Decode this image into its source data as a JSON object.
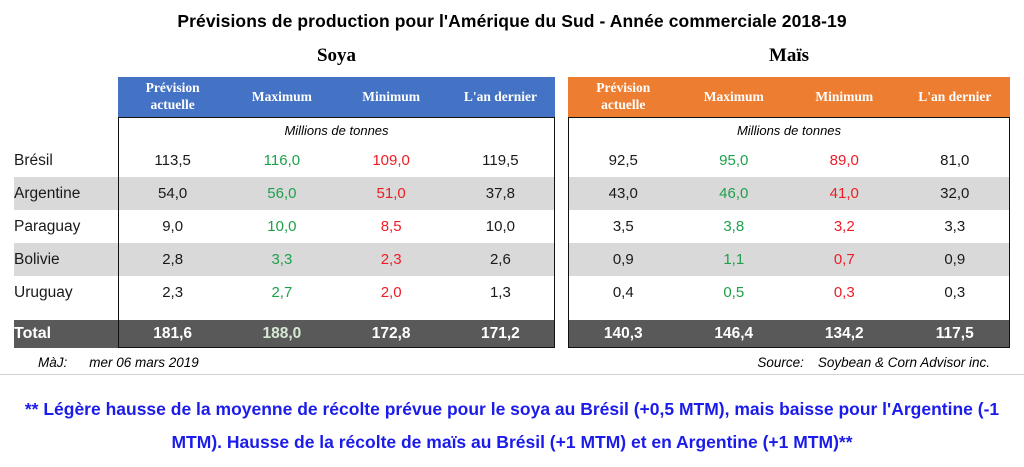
{
  "chart_data": {
    "type": "table",
    "title": "Prévisions de production pour l'Amérique du Sud - Année commerciale 2018-19",
    "groups": [
      "Soya",
      "Maïs"
    ],
    "columns": [
      "Prévision actuelle",
      "Maximum",
      "Minimum",
      "L'an dernier"
    ],
    "units": "Millions de tonnes",
    "rows": [
      {
        "label": "Brésil",
        "soya": [
          "113,5",
          "116,0",
          "109,0",
          "119,5"
        ],
        "mais": [
          "92,5",
          "95,0",
          "89,0",
          "81,0"
        ]
      },
      {
        "label": "Argentine",
        "soya": [
          "54,0",
          "56,0",
          "51,0",
          "37,8"
        ],
        "mais": [
          "43,0",
          "46,0",
          "41,0",
          "32,0"
        ]
      },
      {
        "label": "Paraguay",
        "soya": [
          "9,0",
          "10,0",
          "8,5",
          "10,0"
        ],
        "mais": [
          "3,5",
          "3,8",
          "3,2",
          "3,3"
        ]
      },
      {
        "label": "Bolivie",
        "soya": [
          "2,8",
          "3,3",
          "2,3",
          "2,6"
        ],
        "mais": [
          "0,9",
          "1,1",
          "0,7",
          "0,9"
        ]
      },
      {
        "label": "Uruguay",
        "soya": [
          "2,3",
          "2,7",
          "2,0",
          "1,3"
        ],
        "mais": [
          "0,4",
          "0,5",
          "0,3",
          "0,3"
        ]
      }
    ],
    "total": {
      "label": "Total",
      "soya": [
        "181,6",
        "188,0",
        "172,8",
        "171,2"
      ],
      "mais": [
        "140,3",
        "146,4",
        "134,2",
        "117,5"
      ]
    },
    "legend_semantics": {
      "green_values": "Maximum",
      "red_values": "Minimum"
    }
  },
  "footer": {
    "maj_label": "MàJ:",
    "maj_date": "mer 06 mars 2019",
    "source_label": "Source:",
    "source_value": "Soybean & Corn Advisor inc."
  },
  "note": {
    "text": "** Légère hausse de la moyenne de récolte prévue pour le soya au Brésil (+0,5 MTM), mais baisse pour l'Argentine (-1 MTM). Hausse de la récolte de maïs au Brésil (+1 MTM) et en Argentine (+1 MTM)**"
  },
  "colors": {
    "header_blue": "#4472C4",
    "header_orange": "#ED7D31",
    "stripe": "#D9D9D9",
    "total_bg": "#595959",
    "green": "#1EA04B",
    "red": "#EE1C25",
    "total_green": "#D8E9D3",
    "note_blue": "#1C1CEA"
  }
}
